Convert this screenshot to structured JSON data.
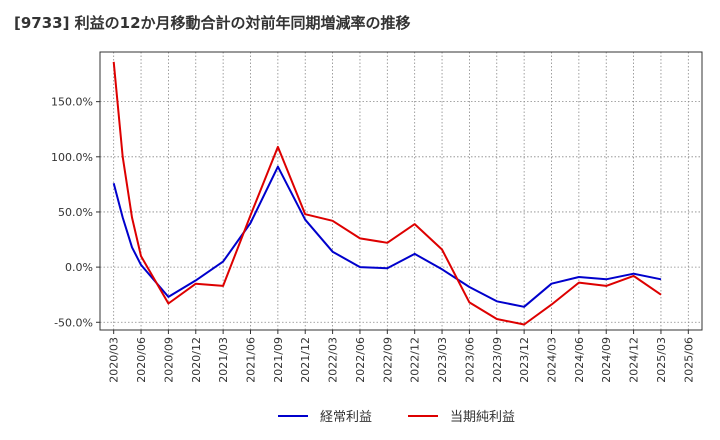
{
  "chart_data": {
    "type": "line",
    "title": "[9733]  利益の12か月移動合計の対前年同期増減率の推移",
    "xlabel": "",
    "ylabel": "",
    "ylim": [
      -57,
      195
    ],
    "grid": true,
    "legend_position": "bottom-center",
    "x": [
      "2020/03",
      "2020/06",
      "2020/09",
      "2020/12",
      "2021/03",
      "2021/06",
      "2021/09",
      "2021/12",
      "2022/03",
      "2022/06",
      "2022/09",
      "2022/12",
      "2023/03",
      "2023/06",
      "2023/09",
      "2023/12",
      "2024/03",
      "2024/06",
      "2024/09",
      "2024/12",
      "2025/03",
      "2025/06"
    ],
    "y_ticks": [
      150,
      100,
      50,
      0,
      -50
    ],
    "y_tick_labels": [
      "150.0%",
      "100.0%",
      "50.0%",
      "0.0%",
      "-50.0%"
    ],
    "series": [
      {
        "name": "経常利益",
        "color": "#0000cc",
        "x": [
          0,
          0.33,
          0.67,
          1,
          2,
          3,
          4,
          5,
          6,
          7,
          8,
          9,
          10,
          11,
          12,
          13,
          14,
          15,
          16,
          17,
          18,
          19,
          20
        ],
        "values": [
          76,
          45,
          18,
          2,
          -27,
          -12,
          5,
          40,
          91,
          43,
          14,
          0,
          -1,
          12,
          -2,
          -18,
          -31,
          -36,
          -15,
          -9,
          -11,
          -6,
          -11
        ]
      },
      {
        "name": "当期純利益",
        "color": "#dd0000",
        "x": [
          0,
          0.33,
          0.67,
          1,
          2,
          3,
          4,
          5,
          6,
          7,
          8,
          9,
          10,
          11,
          12,
          13,
          14,
          15,
          16,
          17,
          18,
          19,
          20
        ],
        "values": [
          186,
          100,
          45,
          10,
          -33,
          -15,
          -17,
          47,
          109,
          48,
          42,
          26,
          22,
          39,
          16,
          -32,
          -47,
          -52,
          -34,
          -14,
          -17,
          -8,
          -25
        ]
      }
    ]
  }
}
